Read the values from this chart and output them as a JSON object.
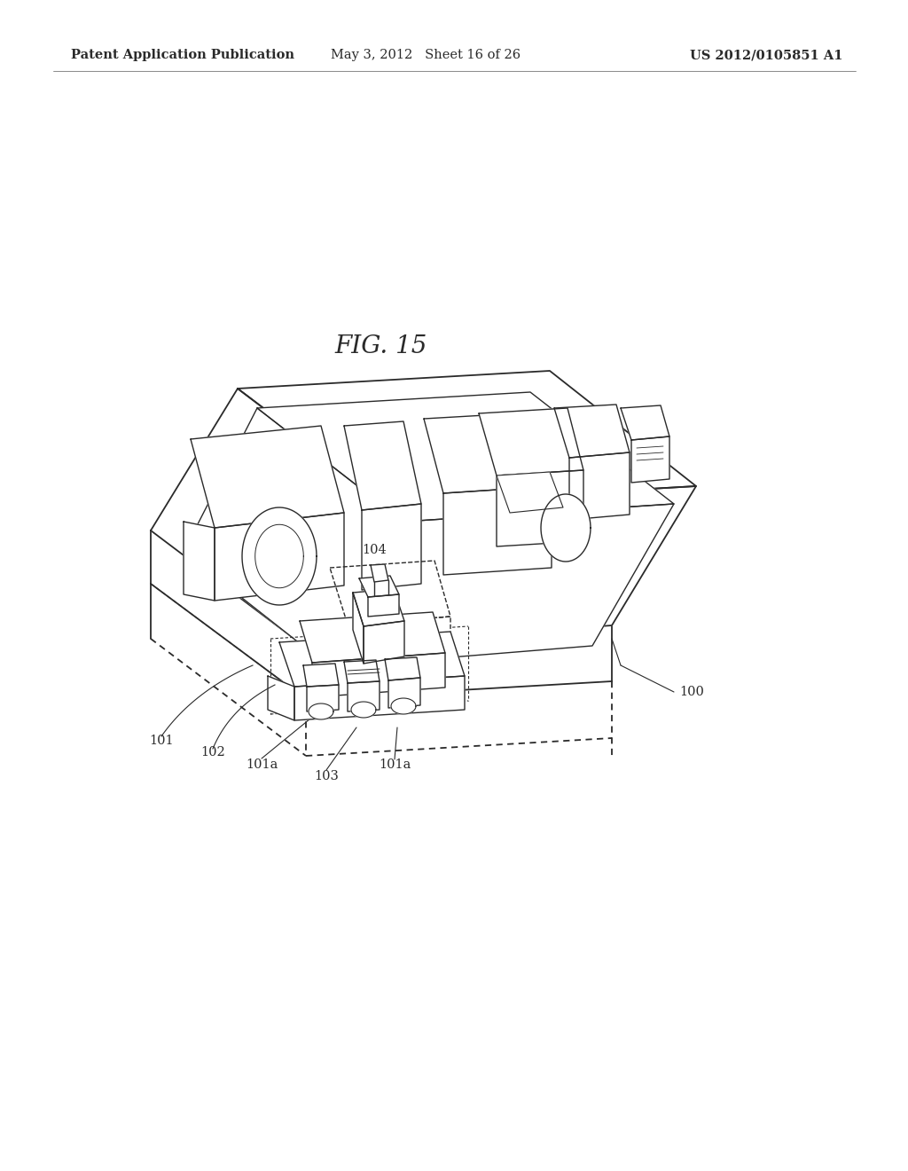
{
  "background_color": "#ffffff",
  "header_left": "Patent Application Publication",
  "header_mid": "May 3, 2012   Sheet 16 of 26",
  "header_right": "US 2012/0105851 A1",
  "fig_title": "FIG. 15",
  "line_color": "#2a2a2a",
  "line_width": 1.3,
  "label_fontsize": 10.5,
  "header_fontsize": 10.5,
  "fig_title_fontsize": 20
}
